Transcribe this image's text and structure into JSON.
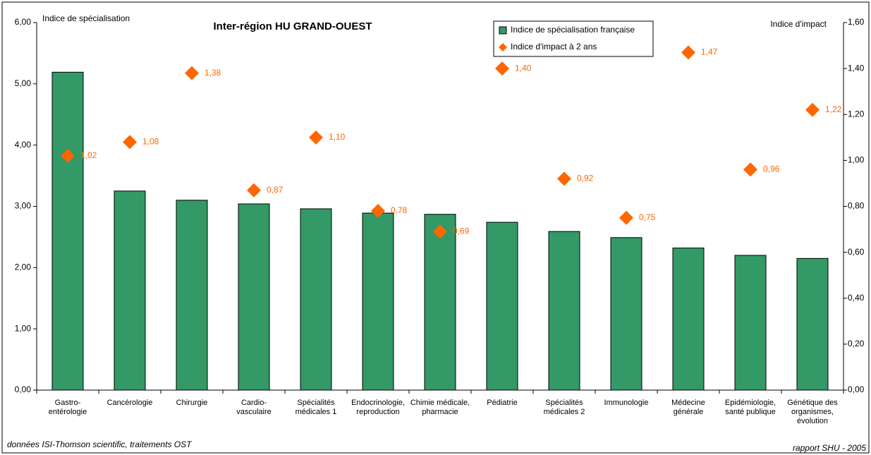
{
  "chart_data": {
    "type": "bar",
    "title": "Inter-région HU GRAND-OUEST",
    "y_label": "Indice de spécialisation",
    "y2_label": "Indice d'impact",
    "source": "données ISI-Thomson scientific, traitements OST",
    "credit": "rapport SHU - 2005",
    "categories": [
      "Gastro-\nentérologie",
      "Cancérologie",
      "Chirurgie",
      "Cardio-\nvasculaire",
      "Spécialités\nmédicales 1",
      "Endocrinologie,\nreproduction",
      "Chimie médicale,\npharmacie",
      "Pédiatrie",
      "Spécialités\nmédicales 2",
      "Immunologie",
      "Médecine\ngénérale",
      "Epidémiologie,\nsanté publique",
      "Génétique des\norganismes,\névolution"
    ],
    "series": [
      {
        "name": "Indice de spécialisation française",
        "type": "bar",
        "color": "#339966",
        "values": [
          5.19,
          3.25,
          3.1,
          3.04,
          2.96,
          2.89,
          2.87,
          2.74,
          2.59,
          2.49,
          2.32,
          2.2,
          2.15
        ]
      },
      {
        "name": "Indice d'impact à 2 ans",
        "type": "scatter",
        "axis": "y2",
        "color": "#ff6600",
        "values": [
          1.02,
          1.08,
          1.38,
          0.87,
          1.1,
          0.78,
          0.69,
          1.4,
          0.92,
          0.75,
          1.47,
          0.96,
          1.22
        ],
        "value_labels": [
          "1,02",
          "1,08",
          "1,38",
          "0,87",
          "1,10",
          "0,78",
          "0,69",
          "1,40",
          "0,92",
          "0,75",
          "1,47",
          "0,96",
          "1,22"
        ]
      }
    ],
    "ylim": [
      0,
      6
    ],
    "yticks": [
      {
        "value": 0,
        "label": "0,00"
      },
      {
        "value": 1,
        "label": "1,00"
      },
      {
        "value": 2,
        "label": "2,00"
      },
      {
        "value": 3,
        "label": "3,00"
      },
      {
        "value": 4,
        "label": "4,00"
      },
      {
        "value": 5,
        "label": "5,00"
      },
      {
        "value": 6,
        "label": "6,00"
      }
    ],
    "y2lim": [
      0,
      1.6
    ],
    "y2ticks": [
      {
        "value": 0,
        "label": "0,00"
      },
      {
        "value": 0.2,
        "label": "0,20"
      },
      {
        "value": 0.4,
        "label": "0,40"
      },
      {
        "value": 0.6,
        "label": "0,60"
      },
      {
        "value": 0.8,
        "label": "0,80"
      },
      {
        "value": 1.0,
        "label": "1,00"
      },
      {
        "value": 1.2,
        "label": "1,20"
      },
      {
        "value": 1.4,
        "label": "1,40"
      },
      {
        "value": 1.6,
        "label": "1,60"
      }
    ],
    "legend": "top-right",
    "grid": false
  }
}
